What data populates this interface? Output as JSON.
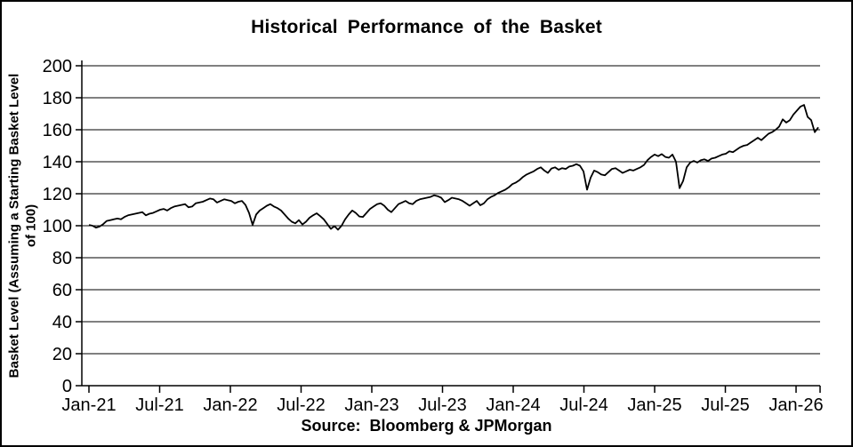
{
  "chart_data": {
    "type": "line",
    "title": "Historical Performance of the Basket",
    "ylabel": "Basket Level (Assuming a Starting Basket Level of 100)",
    "ylabel_line1": "Basket Level (Assuming a Starting Basket Level",
    "ylabel_line2": "of 100)",
    "source": "Source:  Bloomberg & JPMorgan",
    "x_tick_labels": [
      "Jan-21",
      "Jul-21",
      "Jan-22",
      "Jul-22",
      "Jan-23",
      "Jul-23",
      "Jan-24",
      "Jul-24",
      "Jan-25",
      "Jul-25",
      "Jan-26"
    ],
    "y_ticks": [
      0,
      20,
      40,
      60,
      80,
      100,
      120,
      140,
      160,
      180,
      200
    ],
    "ylim": [
      0,
      200
    ],
    "grid": "horizontal-full-width",
    "legend": "none",
    "line_color": "#000000",
    "background_color": "#ffffff",
    "series": [
      {
        "name": "Basket Level (start = 100)",
        "x_start": "Jan-2021",
        "x_end": "Mar-2026",
        "values": [
          100.5,
          100,
          98.8,
          99.5,
          101,
          103,
          103.5,
          104,
          104.5,
          104,
          105.5,
          106.5,
          107,
          107.5,
          108,
          108.5,
          106.5,
          107.5,
          108,
          109,
          110,
          110.5,
          109.5,
          111,
          112,
          112.5,
          113,
          113.5,
          111.5,
          112,
          114,
          114.5,
          115,
          116,
          117,
          116.5,
          114.5,
          115.5,
          116.5,
          116,
          115.5,
          114,
          115,
          115.5,
          113,
          108,
          100.5,
          107,
          109.5,
          111,
          112.5,
          113.5,
          112,
          111,
          109.5,
          107,
          104.5,
          102.5,
          101.5,
          103.5,
          100.8,
          102.5,
          105,
          106.5,
          107.8,
          106,
          104,
          101,
          98,
          99.8,
          97.5,
          100,
          104,
          107,
          109.5,
          108,
          105.8,
          105.5,
          108,
          110.5,
          112,
          113.5,
          114,
          112.5,
          110,
          108.5,
          111,
          113.5,
          114.5,
          115.5,
          114,
          113.5,
          115.5,
          116.5,
          117,
          117.5,
          118,
          119,
          118.5,
          117.5,
          114.8,
          116,
          117.5,
          117,
          116.5,
          115.5,
          114,
          112.5,
          114,
          115.5,
          112.8,
          114,
          116.5,
          118,
          119,
          120.5,
          121.5,
          122.5,
          124,
          126,
          127,
          128.5,
          130.5,
          132,
          133,
          134,
          135.5,
          136.5,
          134.5,
          133,
          135.8,
          136.5,
          135,
          136,
          135.5,
          137,
          137.5,
          138.5,
          137.5,
          134,
          122.5,
          130,
          134.5,
          133.5,
          132,
          131.5,
          133.5,
          135.5,
          136,
          134.5,
          133,
          134,
          135,
          134.5,
          135.5,
          136.5,
          138,
          141,
          143,
          144.5,
          143.5,
          144.8,
          143,
          142.5,
          144.5,
          140,
          123.5,
          128,
          136.5,
          139.5,
          140.5,
          139.5,
          141,
          141.5,
          140.5,
          142,
          142.5,
          143.5,
          144.5,
          145,
          146.5,
          146,
          147.5,
          149,
          150,
          150.5,
          152,
          153.5,
          155,
          153.5,
          155.5,
          157.5,
          158.5,
          160,
          162,
          166.5,
          164.5,
          166,
          169.5,
          172,
          174.5,
          175.5,
          168,
          166,
          158.5,
          161.5
        ]
      }
    ],
    "key_points": {
      "start_jan21": 100,
      "low_oct22": 97.5,
      "flash_dip_aug24": 122.5,
      "flash_dip_apr25": 123.5,
      "peak_feb26": 175.5,
      "end_value": 161.5
    }
  }
}
